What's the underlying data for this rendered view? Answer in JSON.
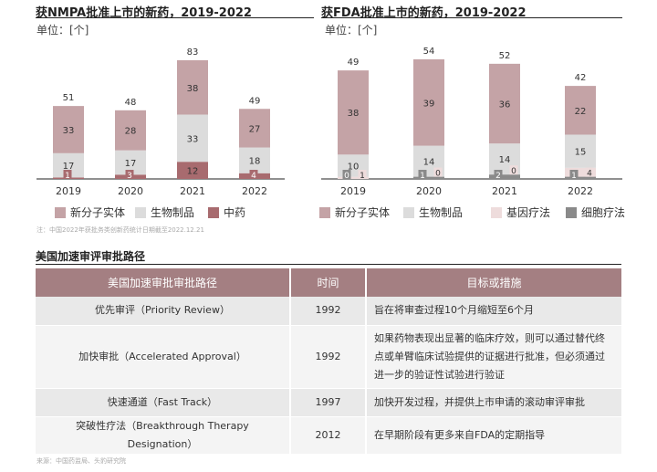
{
  "left_chart": {
    "title": "获NMPA批准上市的新药，2019-2022",
    "unit": "单位：[个]",
    "note": "注：中国2022年获批务类创新药统计日期截至2022.12.21"
  },
  "right_chart": {
    "title": "获FDA批准上市的新药，2019-2022",
    "unit": "单位：[个]"
  },
  "table_section": {
    "title": "美国加速审评审批路径",
    "headers": [
      "美国加速审批审批路径",
      "时间",
      "目标或措施"
    ],
    "rows": [
      [
        "优先审评（Priority Review）",
        "1992",
        "旨在将审查过程10个月缩短至6个月"
      ],
      [
        "加快审批（Accelerated Approval）",
        "1992",
        "如果药物表现出显著的临床疗效，则可以通过替代终点或单臂临床试验提供的证据进行批准，但必须通过进一步的验证性试验进行验证"
      ],
      [
        "快速通道（Fast Track）",
        "1997",
        "加快开发过程，并提供上市申请的滚动审评审批"
      ],
      [
        "突破性疗法（Breakthrough Therapy Designation）",
        "2012",
        "在早期阶段有更多来自FDA的定期指导"
      ]
    ]
  },
  "source": "来源：中国药监局、头豹研究院",
  "chart_data": [
    {
      "type": "bar",
      "stacked": true,
      "title": "获NMPA批准上市的新药，2019-2022",
      "categories": [
        "2019",
        "2020",
        "2021",
        "2022"
      ],
      "series": [
        {
          "name": "中药",
          "color": "#a86b6f",
          "values": [
            1,
            3,
            12,
            4
          ]
        },
        {
          "name": "生物制品",
          "color": "#dcdcdc",
          "values": [
            17,
            17,
            33,
            18
          ]
        },
        {
          "name": "新分子实体",
          "color": "#c4a3a6",
          "values": [
            33,
            28,
            38,
            27
          ]
        }
      ],
      "totals": [
        51,
        48,
        83,
        49
      ],
      "legend": [
        "新分子实体",
        "生物制品",
        "中药"
      ],
      "legend_colors": [
        "#c4a3a6",
        "#dcdcdc",
        "#a86b6f"
      ],
      "ylim": [
        0,
        83
      ]
    },
    {
      "type": "bar",
      "stacked": true,
      "title": "获FDA批准上市的新药，2019-2022",
      "categories": [
        "2019",
        "2020",
        "2021",
        "2022"
      ],
      "series": [
        {
          "name": "细胞疗法",
          "color": "#8a8a8a",
          "values": [
            0,
            1,
            2,
            1
          ]
        },
        {
          "name": "基因疗法",
          "color": "#eedcdc",
          "values": [
            1,
            0,
            0,
            4
          ]
        },
        {
          "name": "生物制品",
          "color": "#dcdcdc",
          "values": [
            10,
            14,
            14,
            15
          ]
        },
        {
          "name": "新分子实体",
          "color": "#c4a3a6",
          "values": [
            38,
            39,
            36,
            22
          ]
        }
      ],
      "totals": [
        49,
        54,
        52,
        42
      ],
      "legend": [
        "新分子实体",
        "生物制品",
        "基因疗法",
        "细胞疗法"
      ],
      "legend_colors": [
        "#c4a3a6",
        "#dcdcdc",
        "#eedcdc",
        "#8a8a8a"
      ],
      "ylim": [
        0,
        54
      ]
    }
  ]
}
